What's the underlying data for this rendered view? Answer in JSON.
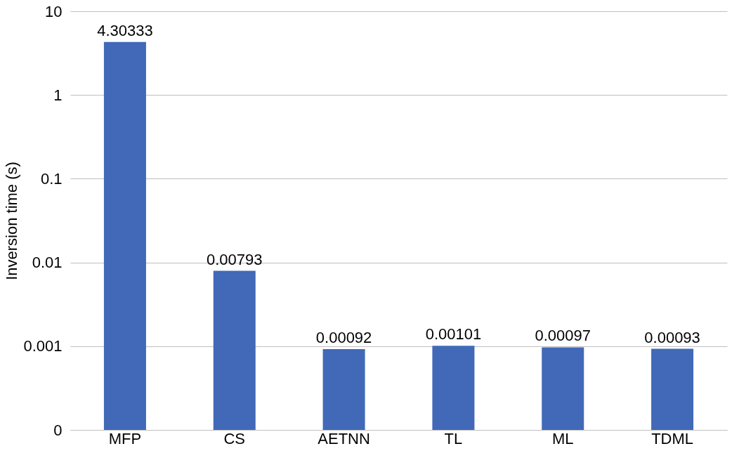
{
  "chart_data": {
    "type": "bar",
    "ylabel": "Inversion time (s)",
    "categories": [
      "MFP",
      "CS",
      "AETNN",
      "TL",
      "ML",
      "TDML"
    ],
    "values": [
      4.30333,
      0.00793,
      0.00092,
      0.00101,
      0.00097,
      0.00093
    ],
    "color": "#4169b8",
    "log": true,
    "ylim": [
      0.0001,
      10
    ],
    "yticks": [
      {
        "value": 0.0001,
        "label": "0"
      },
      0.001,
      0.01,
      0.1,
      1,
      10
    ],
    "grid": "y",
    "data_labels": true
  }
}
